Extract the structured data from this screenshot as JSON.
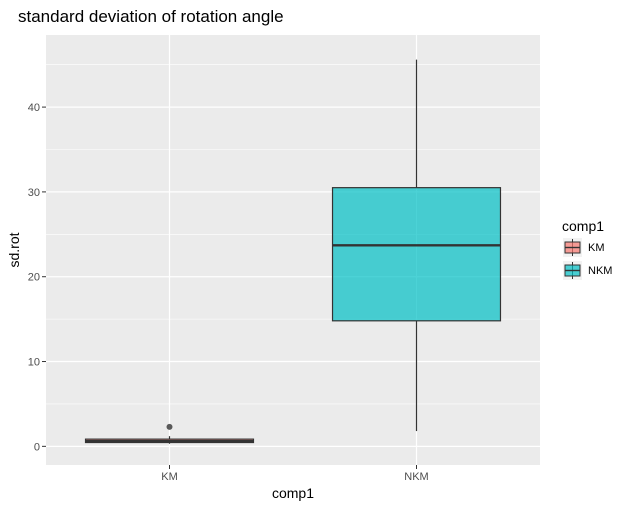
{
  "chart_data": {
    "type": "boxplot",
    "title": "standard deviation of rotation angle",
    "xlabel": "comp1",
    "ylabel": "sd.rot",
    "categories": [
      "KM",
      "NKM"
    ],
    "ylim": [
      -2.2,
      48.5
    ],
    "yticks": [
      0,
      10,
      20,
      30,
      40
    ],
    "grid": true,
    "legend": {
      "title": "comp1",
      "placement": "right",
      "entries": [
        "KM",
        "NKM"
      ]
    },
    "colors": {
      "KM": "#F8766D",
      "NKM": "#00BFC4",
      "panel_background": "#EBEBEB",
      "grid": "#FFFFFF",
      "outline": "#333333"
    },
    "series": [
      {
        "name": "KM",
        "min": 0.3,
        "q1": 0.45,
        "median": 0.6,
        "q3": 0.85,
        "max": 1.2,
        "outliers": [
          2.3
        ]
      },
      {
        "name": "NKM",
        "min": 1.8,
        "q1": 14.8,
        "median": 23.7,
        "q3": 30.5,
        "max": 45.6,
        "outliers": []
      }
    ]
  }
}
